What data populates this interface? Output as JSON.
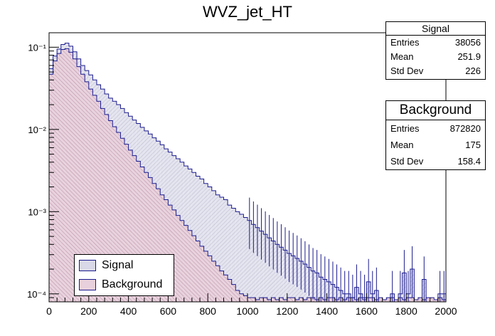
{
  "title": "WVZ_jet_HT",
  "chart_data": {
    "type": "histogram",
    "title": "WVZ_jet_HT",
    "xlabel": "",
    "ylabel": "",
    "xlim": [
      0,
      2000
    ],
    "ylim": [
      8e-05,
      0.15
    ],
    "yscale": "log",
    "bin_width": 20,
    "x_ticks": [
      "0",
      "200",
      "400",
      "600",
      "800",
      "1000",
      "1200",
      "1400",
      "1600",
      "1800",
      "2000"
    ],
    "y_ticks": [
      {
        "value": 0.1,
        "label": "10⁻¹"
      },
      {
        "value": 0.01,
        "label": "10⁻²"
      },
      {
        "value": 0.001,
        "label": "10⁻³"
      },
      {
        "value": 0.0001,
        "label": "10⁻⁴"
      }
    ],
    "series": [
      {
        "name": "Signal",
        "values": [
          0.055,
          0.078,
          0.095,
          0.108,
          0.112,
          0.103,
          0.088,
          0.072,
          0.06,
          0.052,
          0.046,
          0.04,
          0.035,
          0.031,
          0.027,
          0.024,
          0.022,
          0.02,
          0.018,
          0.016,
          0.0145,
          0.013,
          0.0118,
          0.0106,
          0.0096,
          0.0088,
          0.0079,
          0.0072,
          0.0065,
          0.0058,
          0.0053,
          0.0048,
          0.0044,
          0.004,
          0.0036,
          0.0033,
          0.003,
          0.0027,
          0.0025,
          0.0022,
          0.002,
          0.0018,
          0.0016,
          0.0015,
          0.0014,
          0.0012,
          0.0011,
          0.001,
          0.00093,
          0.00085,
          0.00078,
          0.0007,
          0.00064,
          0.00058,
          0.00053,
          0.00048,
          0.00044,
          0.0004,
          0.00037,
          0.00034,
          0.00031,
          0.00029,
          0.00027,
          0.00025,
          0.00023,
          0.00021,
          0.00019,
          0.00018,
          0.00016,
          0.00015,
          0.00014,
          0.00013,
          0.00012,
          0.00011,
          0.0001,
          0.0001,
          9e-05,
          0.00012,
          0.0001,
          9e-05,
          0.00014,
          0.0001,
          0.00011,
          0,
          0,
          0,
          0.0001,
          0,
          0.0001,
          0.00018,
          0.0001,
          0.0002,
          0,
          0,
          0.00015,
          0,
          0,
          0,
          0.0001,
          0.0001
        ]
      },
      {
        "name": "Background",
        "values": [
          0.047,
          0.068,
          0.084,
          0.094,
          0.096,
          0.087,
          0.072,
          0.058,
          0.047,
          0.038,
          0.031,
          0.026,
          0.022,
          0.018,
          0.0152,
          0.0128,
          0.0108,
          0.0092,
          0.0078,
          0.0066,
          0.0056,
          0.0048,
          0.0041,
          0.0035,
          0.003,
          0.0026,
          0.0022,
          0.0019,
          0.0016,
          0.0014,
          0.0012,
          0.00105,
          0.0009,
          0.00078,
          0.00068,
          0.00059,
          0.00051,
          0.00044,
          0.00038,
          0.00033,
          0.00029,
          0.00025,
          0.00022,
          0.00019,
          0.00017,
          0.00015,
          0.00013,
          0.00011,
          0.0001,
          9.5e-05,
          9e-05,
          9e-05,
          8.5e-05,
          9e-05,
          9e-05,
          8.5e-05,
          9e-05,
          8.5e-05,
          9e-05,
          8.5e-05,
          9e-05,
          9e-05,
          8.5e-05,
          9e-05,
          8.5e-05,
          9e-05,
          9e-05,
          8.5e-05,
          9e-05,
          8.5e-05,
          9e-05,
          9e-05,
          8.5e-05,
          9e-05,
          8.5e-05,
          9e-05,
          9e-05,
          8.5e-05,
          9e-05,
          8.5e-05,
          9e-05,
          9e-05,
          8.5e-05,
          9e-05,
          8.5e-05,
          9e-05,
          9e-05,
          8.5e-05,
          9e-05,
          8.5e-05,
          9e-05,
          9e-05,
          8.5e-05,
          9e-05,
          8.5e-05,
          9e-05,
          9e-05,
          8.5e-05,
          9e-05,
          8.5e-05
        ]
      }
    ],
    "legend": [
      {
        "label": "Signal",
        "color": "#d8d8e8"
      },
      {
        "label": "Background",
        "color": "#e8d0dc"
      }
    ]
  },
  "stats": {
    "signal": {
      "title": "Signal",
      "rows": [
        {
          "label": "Entries",
          "value": "38056"
        },
        {
          "label": "Mean",
          "value": "251.9"
        },
        {
          "label": "Std Dev",
          "value": "226"
        }
      ]
    },
    "background": {
      "title": "Background",
      "rows": [
        {
          "label": "Entries",
          "value": "872820"
        },
        {
          "label": "Mean",
          "value": "175"
        },
        {
          "label": "Std Dev",
          "value": "158.4"
        }
      ]
    }
  },
  "colors": {
    "signal_fill": "#d8d8e8",
    "background_fill": "#e8d0dc",
    "line": "#1b1b8f",
    "frame": "#000000"
  }
}
